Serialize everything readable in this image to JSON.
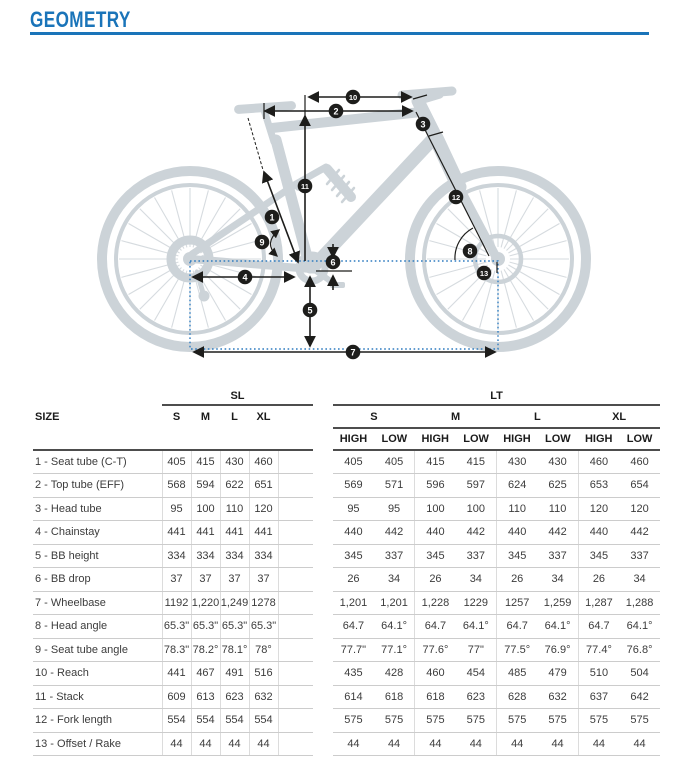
{
  "page": {
    "title": "GEOMETRY"
  },
  "colors": {
    "accent_blue": "#1a74b9",
    "bike_silhouette_gray": "#ccd3d8",
    "guide_dotted_blue": "#2f7cc0",
    "ink_dark": "#1d1d1b"
  },
  "diagram": {
    "description": "full-suspension-bike-geometry-diagram",
    "callouts": [
      "1",
      "2",
      "3",
      "4",
      "5",
      "6",
      "7",
      "8",
      "9",
      "10",
      "11",
      "12",
      "13"
    ]
  },
  "table": {
    "size_header": "SIZE",
    "groups": {
      "left": "SL",
      "right": "LT"
    },
    "sl_columns": [
      "S",
      "M",
      "L",
      "XL"
    ],
    "lt_columns": [
      "S",
      "M",
      "L",
      "XL"
    ],
    "lt_subcolumns": [
      "HIGH",
      "LOW"
    ],
    "rows": [
      {
        "label": "1 - Seat tube (C-T)",
        "sl": [
          "405",
          "415",
          "430",
          "460"
        ],
        "lt": [
          "405",
          "405",
          "415",
          "415",
          "430",
          "430",
          "460",
          "460"
        ]
      },
      {
        "label": "2 - Top tube (EFF)",
        "sl": [
          "568",
          "594",
          "622",
          "651"
        ],
        "lt": [
          "569",
          "571",
          "596",
          "597",
          "624",
          "625",
          "653",
          "654"
        ]
      },
      {
        "label": "3 - Head tube",
        "sl": [
          "95",
          "100",
          "110",
          "120"
        ],
        "lt": [
          "95",
          "95",
          "100",
          "100",
          "110",
          "110",
          "120",
          "120"
        ]
      },
      {
        "label": "4 - Chainstay",
        "sl": [
          "441",
          "441",
          "441",
          "441"
        ],
        "lt": [
          "440",
          "442",
          "440",
          "442",
          "440",
          "442",
          "440",
          "442"
        ]
      },
      {
        "label": "5 - BB height",
        "sl": [
          "334",
          "334",
          "334",
          "334"
        ],
        "lt": [
          "345",
          "337",
          "345",
          "337",
          "345",
          "337",
          "345",
          "337"
        ]
      },
      {
        "label": "6 - BB drop",
        "sl": [
          "37",
          "37",
          "37",
          "37"
        ],
        "lt": [
          "26",
          "34",
          "26",
          "34",
          "26",
          "34",
          "26",
          "34"
        ]
      },
      {
        "label": "7 - Wheelbase",
        "sl": [
          "1192",
          "1,220",
          "1,249",
          "1278"
        ],
        "lt": [
          "1,201",
          "1,201",
          "1,228",
          "1229",
          "1257",
          "1,259",
          "1,287",
          "1,288"
        ]
      },
      {
        "label": "8 - Head angle",
        "sl": [
          "65.3\"",
          "65.3\"",
          "65.3\"",
          "65.3\""
        ],
        "lt": [
          "64.7",
          "64.1°",
          "64.7",
          "64.1°",
          "64.7",
          "64.1°",
          "64.7",
          "64.1°"
        ]
      },
      {
        "label": "9 - Seat tube angle",
        "sl": [
          "78.3\"",
          "78.2°",
          "78.1°",
          "78°"
        ],
        "lt": [
          "77.7\"",
          "77.1°",
          "77.6°",
          "77\"",
          "77.5°",
          "76.9°",
          "77.4°",
          "76.8°"
        ]
      },
      {
        "label": "10 - Reach",
        "sl": [
          "441",
          "467",
          "491",
          "516"
        ],
        "lt": [
          "435",
          "428",
          "460",
          "454",
          "485",
          "479",
          "510",
          "504"
        ]
      },
      {
        "label": "11 - Stack",
        "sl": [
          "609",
          "613",
          "623",
          "632"
        ],
        "lt": [
          "614",
          "618",
          "618",
          "623",
          "628",
          "632",
          "637",
          "642"
        ]
      },
      {
        "label": "12 - Fork length",
        "sl": [
          "554",
          "554",
          "554",
          "554"
        ],
        "lt": [
          "575",
          "575",
          "575",
          "575",
          "575",
          "575",
          "575",
          "575"
        ]
      },
      {
        "label": "13 - Offset / Rake",
        "sl": [
          "44",
          "44",
          "44",
          "44"
        ],
        "lt": [
          "44",
          "44",
          "44",
          "44",
          "44",
          "44",
          "44",
          "44"
        ]
      }
    ]
  }
}
